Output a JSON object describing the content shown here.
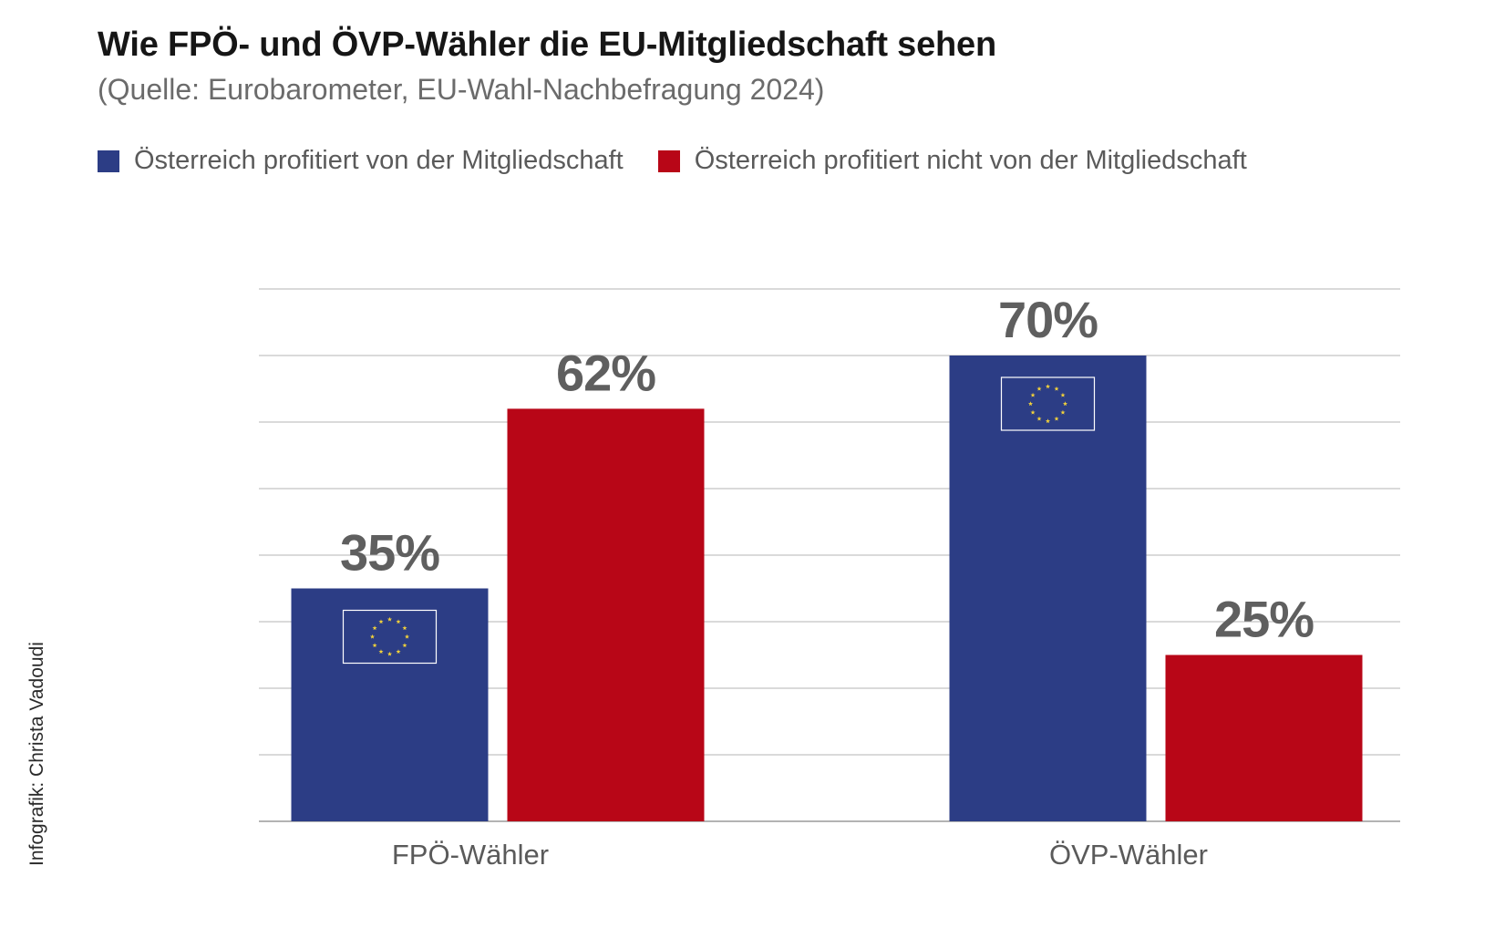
{
  "header": {
    "title": "Wie FPÖ- und ÖVP-Wähler die EU-Mitgliedschaft sehen",
    "subtitle": "(Quelle: Eurobarometer, EU-Wahl-Nachbefragung 2024)"
  },
  "legend": [
    {
      "label": "Österreich profitiert von der Mitgliedschaft",
      "color": "#2c3d85"
    },
    {
      "label": "Österreich profitiert nicht von der Mitgliedschaft",
      "color": "#b80617"
    }
  ],
  "credit": "Infografik: Christa Vadoudi",
  "chart_data": {
    "type": "bar",
    "title": "Wie FPÖ- und ÖVP-Wähler die EU-Mitgliedschaft sehen",
    "subtitle": "(Quelle: Eurobarometer, EU-Wahl-Nachbefragung 2024)",
    "categories": [
      "FPÖ-Wähler",
      "ÖVP-Wähler"
    ],
    "series": [
      {
        "name": "Österreich profitiert von der Mitgliedschaft",
        "values": [
          35,
          70
        ],
        "labels": [
          "35%",
          "70%"
        ],
        "color": "#2c3d85"
      },
      {
        "name": "Österreich profitiert nicht von der Mitgliedschaft",
        "values": [
          62,
          25
        ],
        "labels": [
          "62%",
          "25%"
        ],
        "color": "#b80617"
      }
    ],
    "ylim": [
      0,
      80
    ],
    "grid_step": 10,
    "xlabel": "",
    "ylabel": "",
    "legend_position": "top-left",
    "flag_marker": "eu-flag-icon",
    "flag_color": "#2c3d85",
    "star_color": "#f3d23a"
  }
}
